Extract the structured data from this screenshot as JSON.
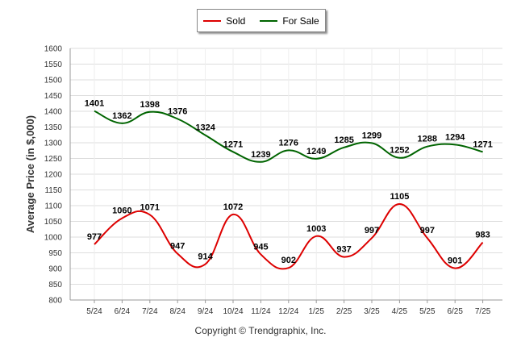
{
  "legend": {
    "sold_label": "Sold",
    "for_sale_label": "For Sale"
  },
  "copyright": "Copyright © Trendgraphix, Inc.",
  "colors": {
    "sold": "#dd0000",
    "for_sale": "#006400",
    "grid": "#dddddd",
    "axis": "#999999"
  },
  "chart_data": {
    "type": "line",
    "title": "",
    "xlabel": "",
    "ylabel": "Average Price (in $,000)",
    "ylim": [
      800,
      1600
    ],
    "yticks": [
      800,
      850,
      900,
      950,
      1000,
      1050,
      1100,
      1150,
      1200,
      1250,
      1300,
      1350,
      1400,
      1450,
      1500,
      1550,
      1600
    ],
    "grid": true,
    "legend_position": "top-center",
    "categories": [
      "5/24",
      "6/24",
      "7/24",
      "8/24",
      "9/24",
      "10/24",
      "11/24",
      "12/24",
      "1/25",
      "2/25",
      "3/25",
      "4/25",
      "5/25",
      "6/25",
      "7/25"
    ],
    "series": [
      {
        "name": "Sold",
        "color": "#dd0000",
        "values": [
          977,
          1060,
          1071,
          947,
          914,
          1072,
          945,
          902,
          1003,
          937,
          997,
          1105,
          997,
          901,
          983
        ]
      },
      {
        "name": "For Sale",
        "color": "#006400",
        "values": [
          1401,
          1362,
          1398,
          1376,
          1324,
          1271,
          1239,
          1276,
          1249,
          1285,
          1299,
          1252,
          1288,
          1294,
          1271
        ]
      }
    ]
  }
}
